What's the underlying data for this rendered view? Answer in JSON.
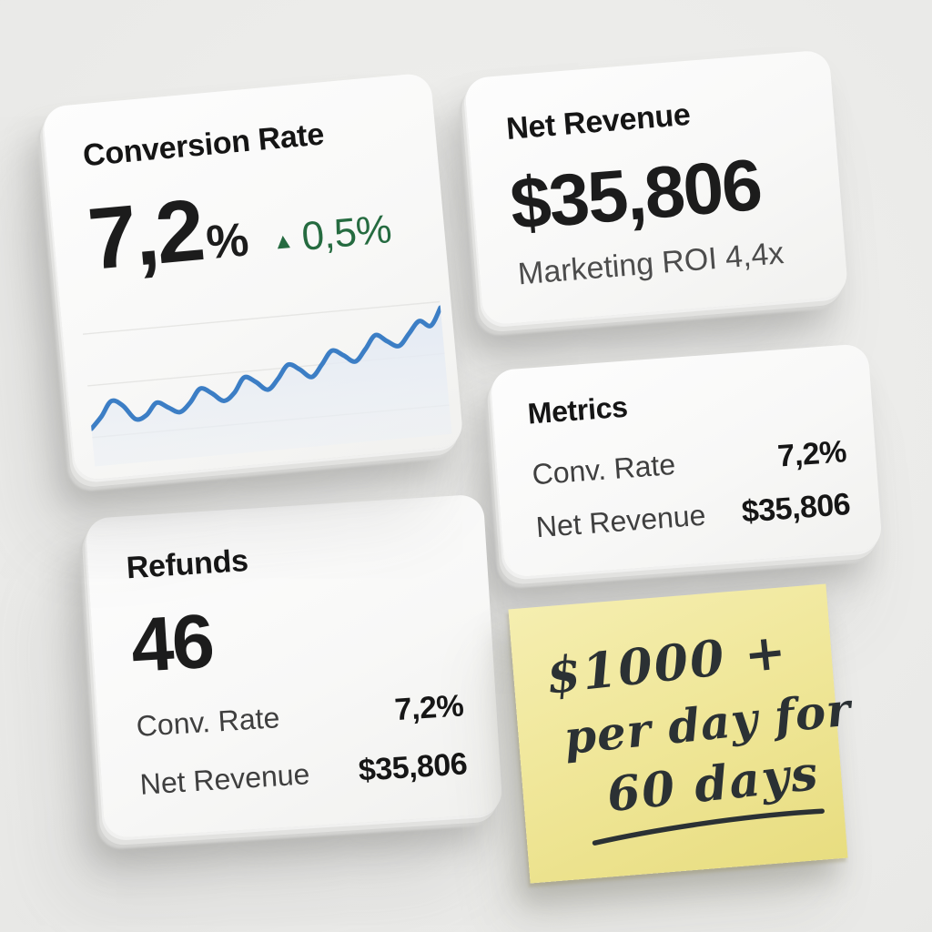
{
  "colors": {
    "accent_blue": "#3c7ec5",
    "spark_fill": "#e7ecf5",
    "positive_green": "#256b40",
    "sticky_yellow": "#f0e79a",
    "sticky_ink": "#2b3134"
  },
  "cards": {
    "conversion": {
      "title": "Conversion Rate",
      "value": "7,2",
      "value_suffix": "%",
      "delta_icon": "▲",
      "delta": "0,5%",
      "sparkline": {
        "type": "line",
        "color": "#3c7ec5",
        "values": [
          20,
          28,
          38,
          34,
          24,
          26,
          34,
          30,
          26,
          32,
          41,
          37,
          31,
          36,
          46,
          42,
          36,
          43,
          52,
          48,
          42,
          50,
          59,
          55,
          50,
          58,
          67,
          62,
          58,
          66,
          74,
          70,
          82
        ]
      }
    },
    "net_revenue": {
      "title": "Net Revenue",
      "value": "$35,806",
      "subtitle": "Marketing ROI 4,4x"
    },
    "metrics": {
      "title": "Metrics",
      "rows": [
        {
          "label": "Conv. Rate",
          "value": "7,2%"
        },
        {
          "label": "Net Revenue",
          "value": "$35,806"
        }
      ]
    },
    "refunds": {
      "title": "Refunds",
      "value": "46",
      "rows": [
        {
          "label": "Conv. Rate",
          "value": "7,2%"
        },
        {
          "label": "Net Revenue",
          "value": "$35,806"
        }
      ]
    }
  },
  "sticky_note": {
    "lines": [
      "$1000 +",
      "per day for",
      "60 days"
    ],
    "underlined_line": "60 days"
  }
}
